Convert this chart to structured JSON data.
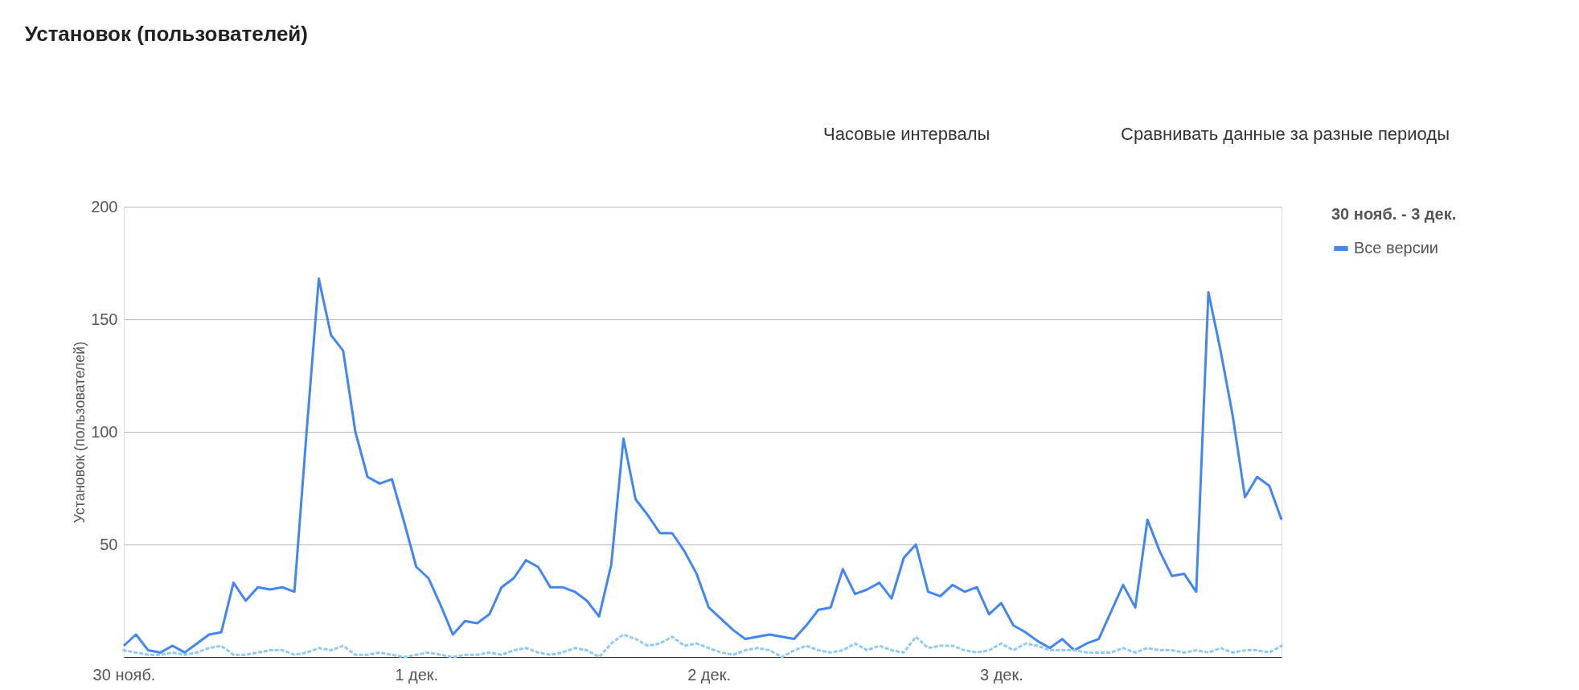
{
  "chart_data": {
    "type": "line",
    "title": "Установок (пользователей)",
    "ylabel": "Установок (пользователей)",
    "legend_title": "30 нояб. - 3 дек.",
    "annotations": [
      "Часовые интервалы",
      "Сравнивать данные за разные периоды"
    ],
    "categories": [
      "30 нояб.",
      null,
      null,
      null,
      null,
      null,
      null,
      null,
      null,
      null,
      null,
      null,
      null,
      null,
      null,
      null,
      null,
      null,
      null,
      null,
      null,
      null,
      null,
      null,
      "1 дек.",
      null,
      null,
      null,
      null,
      null,
      null,
      null,
      null,
      null,
      null,
      null,
      null,
      null,
      null,
      null,
      null,
      null,
      null,
      null,
      null,
      null,
      null,
      null,
      "2 дек.",
      null,
      null,
      null,
      null,
      null,
      null,
      null,
      null,
      null,
      null,
      null,
      null,
      null,
      null,
      null,
      null,
      null,
      null,
      null,
      null,
      null,
      null,
      null,
      "3 дек.",
      null,
      null,
      null,
      null,
      null,
      null,
      null,
      null,
      null,
      null,
      null,
      null,
      null,
      null,
      null,
      null,
      null,
      null,
      null,
      null,
      null,
      null,
      null
    ],
    "series": [
      {
        "name": "Все версии",
        "color": "#4285f4",
        "line_style": "solid",
        "values": [
          5,
          10,
          3,
          2,
          5,
          2,
          6,
          10,
          11,
          33,
          25,
          31,
          30,
          31,
          29,
          100,
          168,
          143,
          136,
          100,
          80,
          77,
          79,
          60,
          40,
          35,
          23,
          10,
          16,
          15,
          19,
          31,
          35,
          43,
          40,
          31,
          31,
          29,
          25,
          18,
          41,
          97,
          70,
          63,
          55,
          55,
          47,
          37,
          22,
          17,
          12,
          8,
          9,
          10,
          9,
          8,
          14,
          21,
          22,
          39,
          28,
          30,
          33,
          26,
          44,
          50,
          29,
          27,
          32,
          29,
          31,
          19,
          24,
          14,
          11,
          7,
          4,
          8,
          3,
          6,
          8,
          20,
          32,
          22,
          61,
          47,
          36,
          37,
          29,
          162,
          136,
          107,
          71,
          80,
          76,
          61
        ]
      },
      {
        "color": "#90caf9",
        "line_style": "dotted",
        "values": [
          3,
          2,
          1,
          1,
          2,
          1,
          2,
          4,
          5,
          1,
          1,
          2,
          3,
          3,
          1,
          2,
          4,
          3,
          5,
          1,
          1,
          2,
          1,
          0,
          1,
          2,
          1,
          0,
          1,
          1,
          2,
          1,
          3,
          4,
          2,
          1,
          2,
          4,
          3,
          0,
          6,
          10,
          8,
          5,
          6,
          9,
          5,
          6,
          4,
          2,
          1,
          3,
          4,
          3,
          0,
          3,
          5,
          3,
          2,
          3,
          6,
          3,
          5,
          3,
          2,
          9,
          4,
          5,
          5,
          3,
          2,
          3,
          6,
          3,
          6,
          5,
          3,
          3,
          3,
          2,
          2,
          2,
          4,
          2,
          4,
          3,
          3,
          2,
          3,
          2,
          4,
          2,
          3,
          3,
          2,
          5
        ]
      }
    ],
    "ylim": [
      0,
      200
    ],
    "yticks": [
      {
        "value": 0,
        "label": null
      },
      50,
      100,
      150,
      200
    ],
    "grid": "y",
    "legend": "top right",
    "marker": "none"
  }
}
